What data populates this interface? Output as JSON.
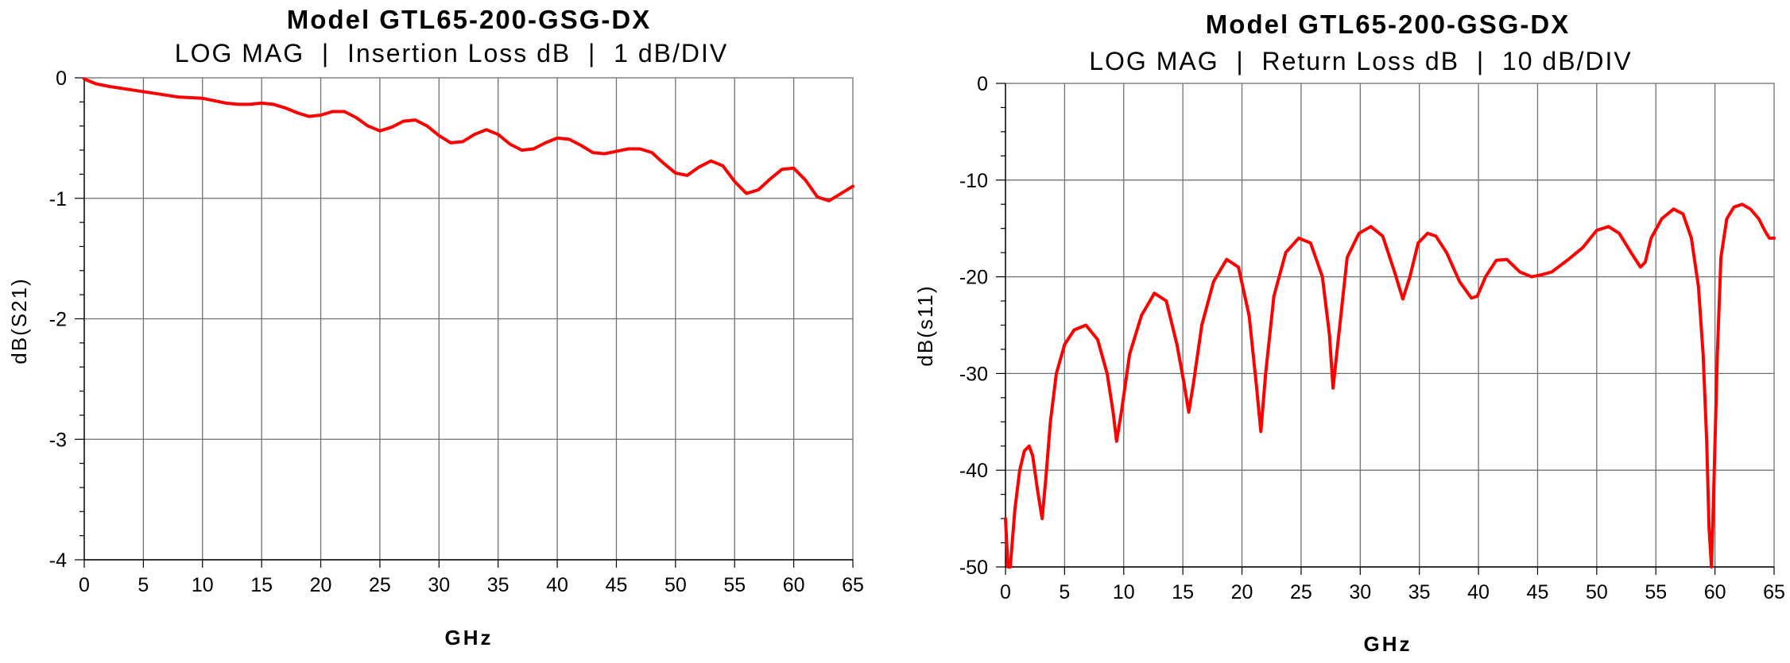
{
  "chart_data": [
    {
      "type": "line",
      "title": "Model GTL65-200-GSG-DX",
      "subtitle": "LOG MAG  |  Insertion Loss dB  |  1 dB/DIV",
      "xlabel": "GHz",
      "ylabel": "dB(S21)",
      "xlim": [
        0,
        65
      ],
      "ylim": [
        -4,
        0
      ],
      "xticks": [
        "0",
        "5",
        "10",
        "15",
        "20",
        "25",
        "30",
        "35",
        "40",
        "45",
        "50",
        "55",
        "60",
        "65"
      ],
      "yticks": [
        "0",
        "-1",
        "-2",
        "-3",
        "-4"
      ],
      "grid": true,
      "trace_color": "#ff0000",
      "series": [
        {
          "x": [
            0,
            1,
            2,
            4,
            6,
            8,
            10,
            11,
            12,
            13,
            14,
            15,
            16,
            17,
            18,
            19,
            20,
            21,
            22,
            23,
            24,
            25,
            26,
            27,
            28,
            29,
            30,
            31,
            32,
            33,
            34,
            35,
            36,
            37,
            38,
            39,
            40,
            41,
            42,
            43,
            44,
            45,
            46,
            47,
            48,
            49,
            50,
            51,
            52,
            53,
            54,
            55,
            56,
            57,
            58,
            59,
            60,
            61,
            62,
            63,
            64,
            65
          ],
          "values": [
            -0.01,
            -0.05,
            -0.07,
            -0.1,
            -0.13,
            -0.16,
            -0.17,
            -0.19,
            -0.21,
            -0.22,
            -0.22,
            -0.21,
            -0.22,
            -0.25,
            -0.29,
            -0.32,
            -0.31,
            -0.28,
            -0.28,
            -0.33,
            -0.4,
            -0.44,
            -0.41,
            -0.36,
            -0.35,
            -0.4,
            -0.48,
            -0.54,
            -0.53,
            -0.47,
            -0.43,
            -0.47,
            -0.55,
            -0.6,
            -0.59,
            -0.54,
            -0.5,
            -0.51,
            -0.56,
            -0.62,
            -0.63,
            -0.61,
            -0.59,
            -0.59,
            -0.62,
            -0.71,
            -0.79,
            -0.81,
            -0.74,
            -0.69,
            -0.73,
            -0.86,
            -0.96,
            -0.93,
            -0.84,
            -0.76,
            -0.75,
            -0.85,
            -0.99,
            -1.02,
            -0.96,
            -0.9
          ]
        }
      ]
    },
    {
      "type": "line",
      "title": "Model GTL65-200-GSG-DX",
      "subtitle": "LOG MAG  |  Return Loss dB  |  10 dB/DIV",
      "xlabel": "GHz",
      "ylabel": "dB(s11)",
      "xlim": [
        0,
        65
      ],
      "ylim": [
        -50,
        0
      ],
      "xticks": [
        "0",
        "5",
        "10",
        "15",
        "20",
        "25",
        "30",
        "35",
        "40",
        "45",
        "50",
        "55",
        "60",
        "65"
      ],
      "yticks": [
        "0",
        "-10",
        "-20",
        "-30",
        "-40",
        "-50"
      ],
      "grid": true,
      "trace_color": "#ff0000",
      "series": [
        {
          "x": [
            0,
            0.2,
            0.4,
            0.8,
            1.2,
            1.6,
            2.0,
            2.3,
            2.7,
            3.1,
            3.4,
            3.8,
            4.3,
            5.0,
            5.8,
            6.8,
            7.8,
            8.6,
            9.1,
            9.4,
            9.8,
            10.5,
            11.5,
            12.6,
            13.6,
            14.5,
            15.1,
            15.5,
            15.9,
            16.6,
            17.6,
            18.7,
            19.7,
            20.6,
            21.2,
            21.6,
            22.0,
            22.7,
            23.7,
            24.8,
            25.8,
            26.8,
            27.4,
            27.7,
            28.1,
            28.9,
            29.9,
            30.9,
            31.9,
            32.9,
            33.6,
            34.2,
            34.9,
            35.7,
            36.4,
            37.3,
            38.4,
            39.4,
            39.9,
            40.6,
            41.5,
            42.4,
            43.5,
            44.5,
            45.3,
            46.2,
            47.5,
            48.8,
            50.0,
            51.0,
            51.9,
            52.9,
            53.7,
            54.1,
            54.6,
            55.5,
            56.5,
            57.3,
            58.0,
            58.6,
            59.0,
            59.3,
            59.5,
            59.7,
            59.9,
            60.2,
            60.5,
            61.0,
            61.6,
            62.3,
            63.0,
            63.7,
            64.2,
            64.6,
            65.0
          ],
          "values": [
            -45,
            -50,
            -50,
            -44,
            -40,
            -38,
            -37.5,
            -38.5,
            -42,
            -45,
            -41,
            -35,
            -30,
            -27,
            -25.5,
            -25,
            -26.5,
            -30,
            -34,
            -37,
            -34,
            -28,
            -24,
            -21.7,
            -22.5,
            -27,
            -31,
            -34,
            -31,
            -25,
            -20.5,
            -18.2,
            -19,
            -24,
            -31,
            -36,
            -30,
            -22,
            -17.5,
            -16,
            -16.5,
            -20,
            -26,
            -31.5,
            -27,
            -18,
            -15.5,
            -14.8,
            -15.8,
            -19.5,
            -22.3,
            -20,
            -16.5,
            -15.5,
            -15.8,
            -17.5,
            -20.5,
            -22.2,
            -22,
            -20,
            -18.3,
            -18.2,
            -19.5,
            -20,
            -19.8,
            -19.5,
            -18.3,
            -17,
            -15.2,
            -14.8,
            -15.5,
            -17.5,
            -19,
            -18.5,
            -16,
            -14,
            -13,
            -13.5,
            -16,
            -21,
            -28,
            -37,
            -46,
            -50,
            -42,
            -28,
            -18,
            -14,
            -12.8,
            -12.5,
            -13,
            -14,
            -15.2,
            -16,
            -16
          ]
        }
      ]
    }
  ]
}
